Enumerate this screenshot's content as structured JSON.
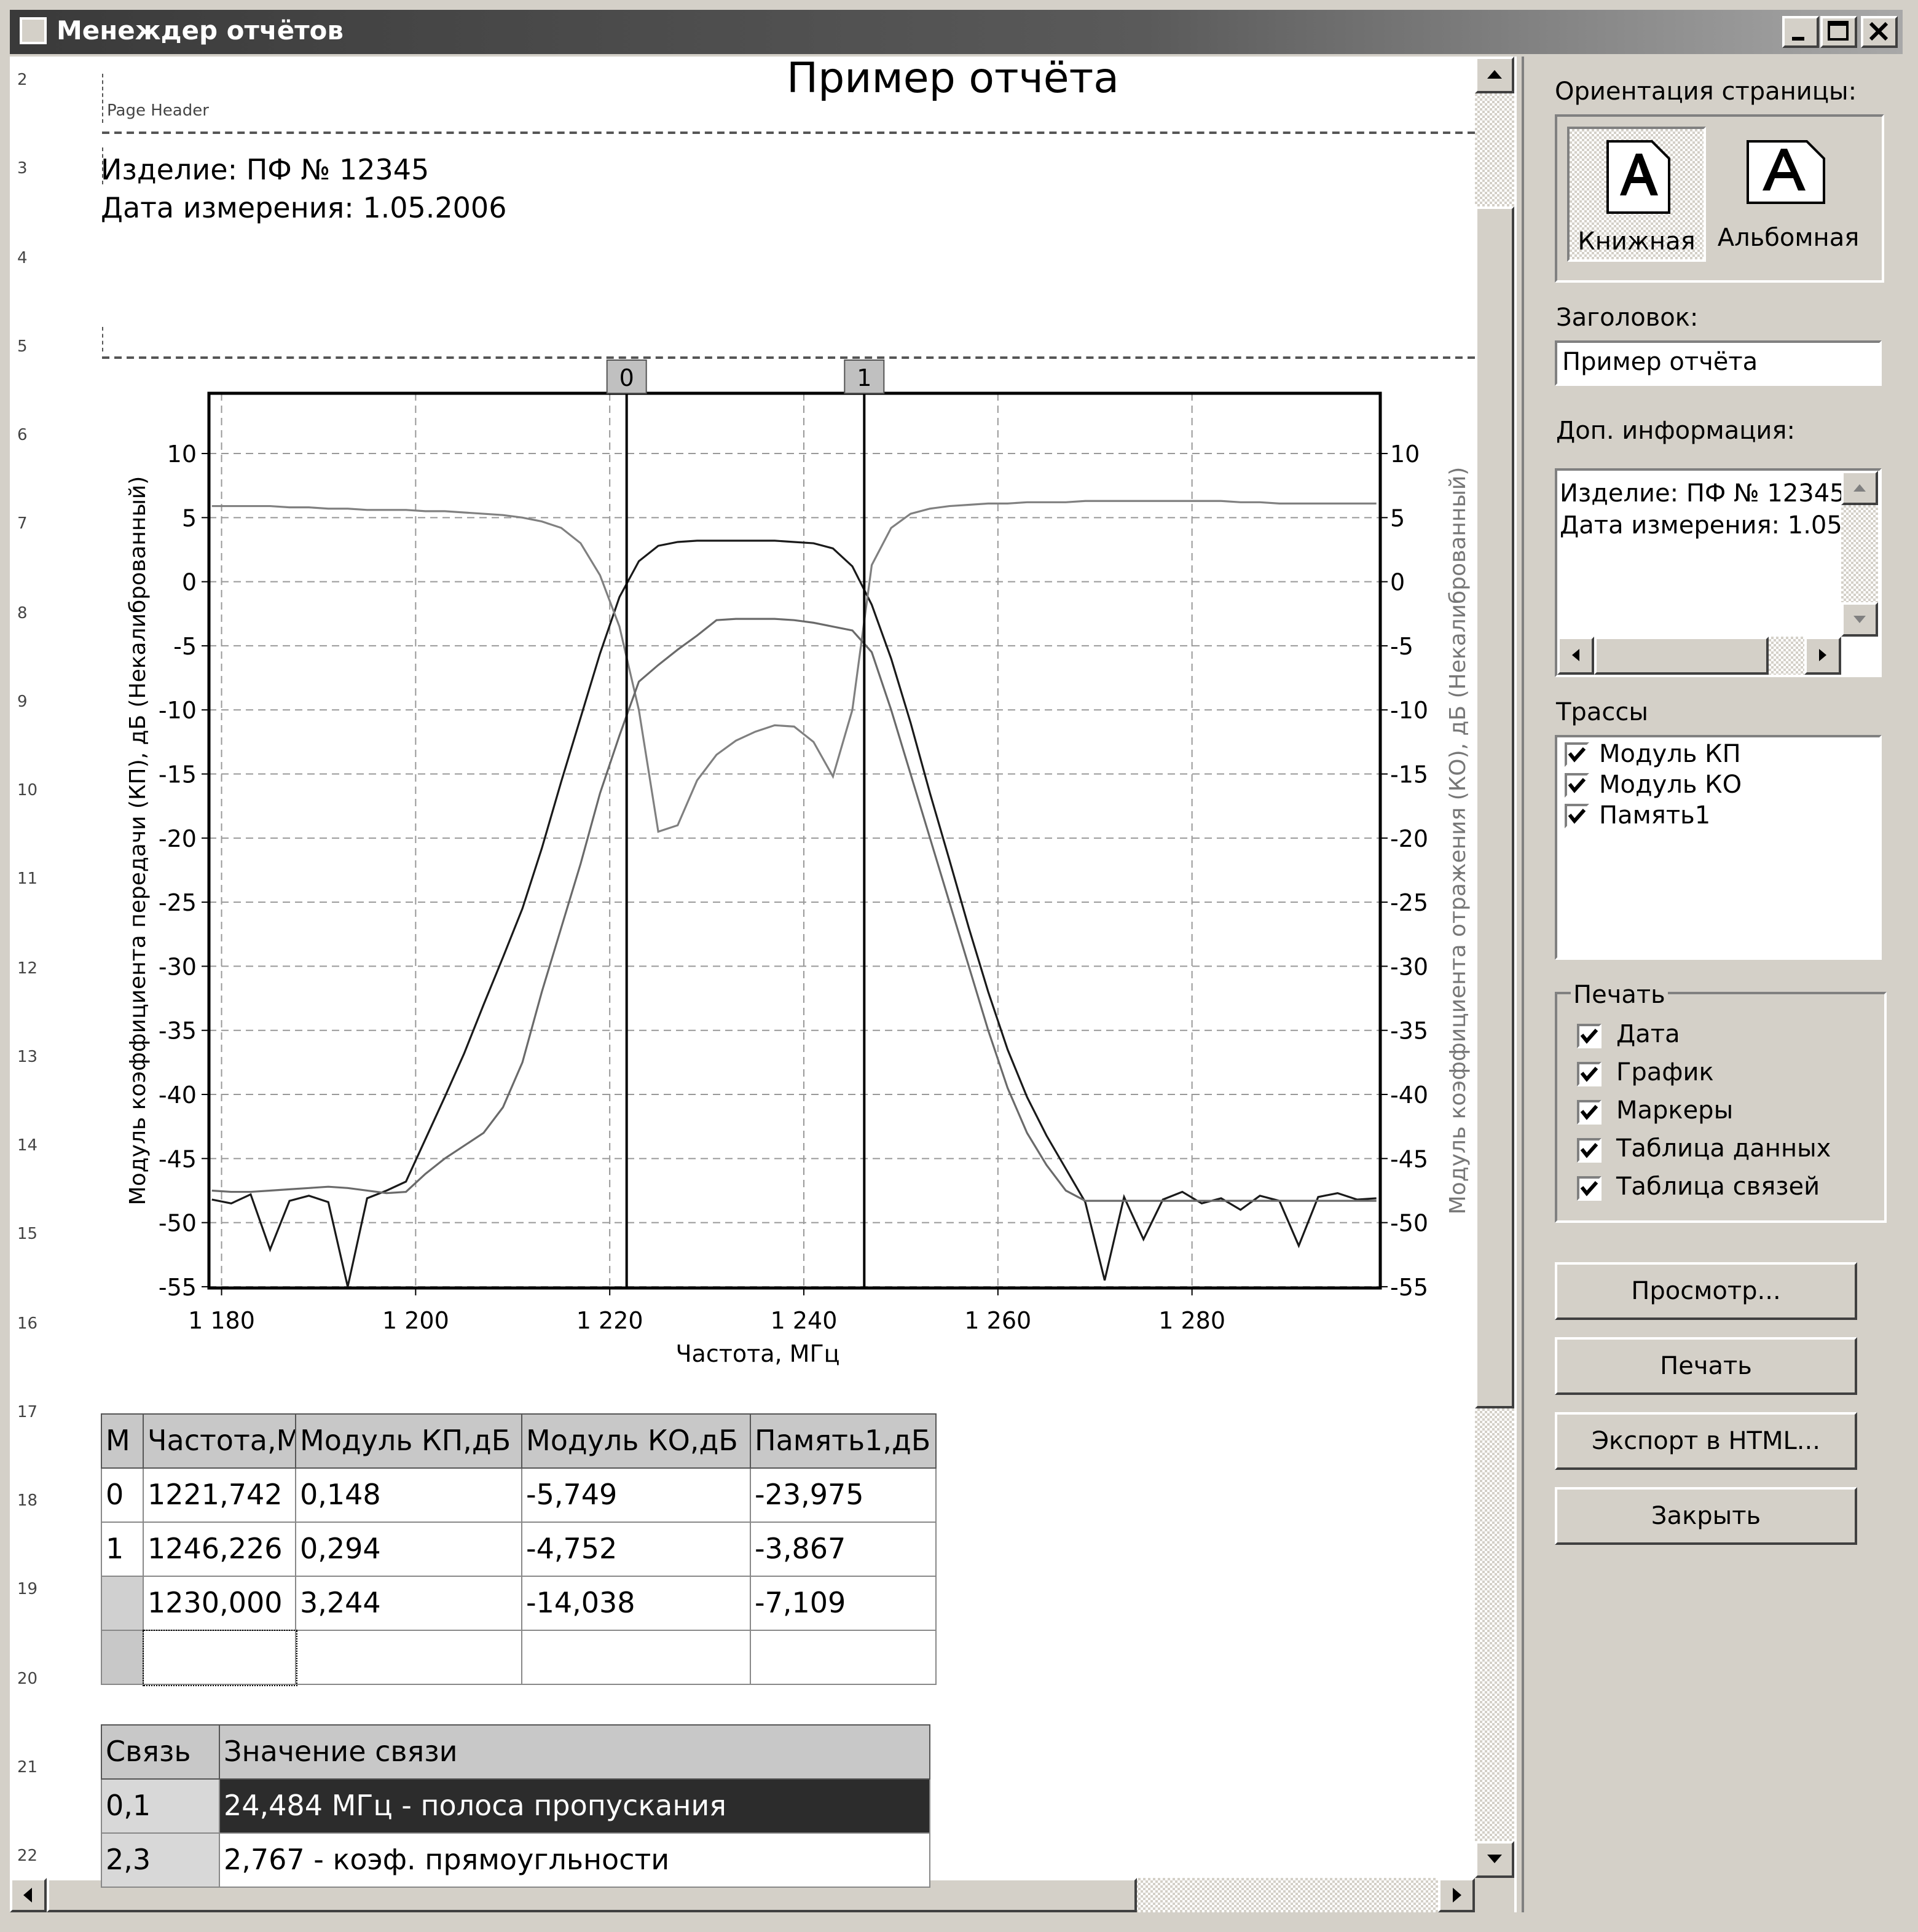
{
  "window": {
    "title": "Менеждер отчётов"
  },
  "report": {
    "title": "Пример отчёта",
    "page_header": "Page Header",
    "info": [
      "Изделие: ПФ № 12345",
      "Дата измерения: 1.05.2006"
    ],
    "ruler": [
      2,
      3,
      4,
      5,
      6,
      7,
      8,
      9,
      10,
      11,
      12,
      13,
      14,
      15,
      16,
      17,
      18,
      19,
      20,
      21,
      22
    ],
    "markers_table": {
      "headers": [
        "М",
        "Частота,М",
        "Модуль КП,дБ",
        "Модуль КО,дБ",
        "Память1,дБ"
      ],
      "rows": [
        [
          "0",
          "1221,742",
          "0,148",
          "-5,749",
          "-23,975"
        ],
        [
          "1",
          "1246,226",
          "0,294",
          "-4,752",
          "-3,867"
        ],
        [
          null,
          "1230,000",
          "3,244",
          "-14,038",
          "-7,109"
        ]
      ]
    },
    "links_table": {
      "headers": [
        "Связь",
        "Значение связи"
      ],
      "rows": [
        [
          "0,1",
          "24,484 МГц - полоса пропускания"
        ],
        [
          "2,3",
          "2,767 - коэф. прямоугльности"
        ]
      ]
    }
  },
  "chart_data": {
    "type": "line",
    "xlabel": "Частота, МГц",
    "ylabel": "Модуль коэффициента передачи (КП), дБ  (Некалиброванный)",
    "y2label": "Модуль коэффициента отражения (КО), дБ  (Некалиброванный)",
    "xlim": [
      1178.7,
      1299.4
    ],
    "ylim": [
      -55.1,
      14.7
    ],
    "y2lim": [
      -55.1,
      14.7
    ],
    "xticks": [
      {
        "value": 1180,
        "label": "1 180"
      },
      {
        "value": 1200,
        "label": "1 200"
      },
      {
        "value": 1220,
        "label": "1 220"
      },
      {
        "value": 1240,
        "label": "1 240"
      },
      {
        "value": 1260,
        "label": "1 260"
      },
      {
        "value": 1280,
        "label": "1 280"
      }
    ],
    "yticks": [
      10,
      5,
      0,
      -5,
      -10,
      -15,
      -20,
      -25,
      -30,
      -35,
      -40,
      -45,
      -50,
      -55
    ],
    "y2ticks": [
      10,
      5,
      0,
      -5,
      -10,
      -15,
      -20,
      -25,
      -30,
      -35,
      -40,
      -45,
      -50,
      -55
    ],
    "grid": true,
    "x": [
      1179,
      1181,
      1183,
      1185,
      1187,
      1189,
      1191,
      1193,
      1195,
      1197,
      1199,
      1201,
      1203,
      1205,
      1207,
      1209,
      1211,
      1213,
      1215,
      1217,
      1219,
      1221,
      1223,
      1225,
      1227,
      1229,
      1231,
      1233,
      1235,
      1237,
      1239,
      1241,
      1243,
      1245,
      1247,
      1249,
      1251,
      1253,
      1255,
      1257,
      1259,
      1261,
      1263,
      1265,
      1267,
      1269,
      1271,
      1273,
      1275,
      1277,
      1279,
      1281,
      1283,
      1285,
      1287,
      1289,
      1291,
      1293,
      1295,
      1297,
      1299
    ],
    "series": [
      {
        "name": "Модуль КП",
        "color": "#1a1a1a",
        "values": [
          -48.2,
          -48.5,
          -47.8,
          -52.1,
          -48.3,
          -47.9,
          -48.4,
          -55,
          -48.1,
          -47.5,
          -46.8,
          -43.5,
          -40.2,
          -36.8,
          -33.0,
          -29.3,
          -25.5,
          -20.8,
          -15.6,
          -10.6,
          -5.6,
          -1.2,
          1.6,
          2.8,
          3.1,
          3.2,
          3.2,
          3.2,
          3.2,
          3.2,
          3.1,
          3.0,
          2.6,
          1.2,
          -1.8,
          -6.0,
          -11.0,
          -16.5,
          -21.7,
          -27.0,
          -32.0,
          -36.5,
          -40.2,
          -43.2,
          -45.8,
          -48.4,
          -54.5,
          -48.0,
          -51.3,
          -48.2,
          -47.6,
          -48.5,
          -48.1,
          -49.0,
          -47.9,
          -48.3,
          -51.8,
          -48.0,
          -47.7,
          -48.2,
          -48.1
        ]
      },
      {
        "name": "Модуль КО",
        "color": "#808080",
        "axis": "y2",
        "values": [
          5.9,
          5.9,
          5.9,
          5.9,
          5.8,
          5.8,
          5.7,
          5.7,
          5.6,
          5.6,
          5.6,
          5.5,
          5.5,
          5.4,
          5.3,
          5.2,
          5.0,
          4.7,
          4.2,
          3.0,
          0.5,
          -3.5,
          -10.0,
          -19.5,
          -19.0,
          -15.5,
          -13.5,
          -12.4,
          -11.7,
          -11.2,
          -11.3,
          -12.5,
          -15.2,
          -10.0,
          1.3,
          4.2,
          5.3,
          5.7,
          5.9,
          6.0,
          6.1,
          6.1,
          6.2,
          6.2,
          6.2,
          6.3,
          6.3,
          6.3,
          6.3,
          6.3,
          6.3,
          6.3,
          6.3,
          6.2,
          6.2,
          6.1,
          6.1,
          6.1,
          6.1,
          6.1,
          6.1
        ]
      },
      {
        "name": "Память1",
        "color": "#6a6a6a",
        "values": [
          -47.5,
          -47.6,
          -47.6,
          -47.5,
          -47.4,
          -47.3,
          -47.2,
          -47.3,
          -47.5,
          -47.7,
          -47.6,
          -46.2,
          -45.0,
          -44.0,
          -43.0,
          -41.0,
          -37.5,
          -32.0,
          -27.0,
          -22.0,
          -16.5,
          -12.0,
          -7.8,
          -6.5,
          -5.3,
          -4.2,
          -3.0,
          -2.9,
          -2.9,
          -2.9,
          -3.0,
          -3.2,
          -3.5,
          -3.8,
          -5.5,
          -10.0,
          -15.0,
          -20.0,
          -25.0,
          -30.0,
          -35.0,
          -39.5,
          -43.0,
          -45.5,
          -47.5,
          -48.3,
          -48.3,
          -48.3,
          -48.3,
          -48.3,
          -48.3,
          -48.3,
          -48.3,
          -48.3,
          -48.3,
          -48.3,
          -48.3,
          -48.3,
          -48.3,
          -48.3,
          -48.3
        ]
      }
    ],
    "markers": [
      {
        "label": "0",
        "x": 1221.742
      },
      {
        "label": "1",
        "x": 1246.226
      }
    ]
  },
  "panel": {
    "orientation_label": "Ориентация страницы:",
    "orientations": [
      "Книжная",
      "Альбомная"
    ],
    "title_label": "Заголовок:",
    "info_label": "Доп. информация:",
    "traces_label": "Трассы",
    "print_label": "Печать",
    "print_options": [
      "Дата",
      "График",
      "Маркеры",
      "Таблица данных",
      "Таблица связей"
    ],
    "buttons": [
      "Просмотр...",
      "Печать",
      "Экспорт в HTML...",
      "Закрыть"
    ]
  }
}
